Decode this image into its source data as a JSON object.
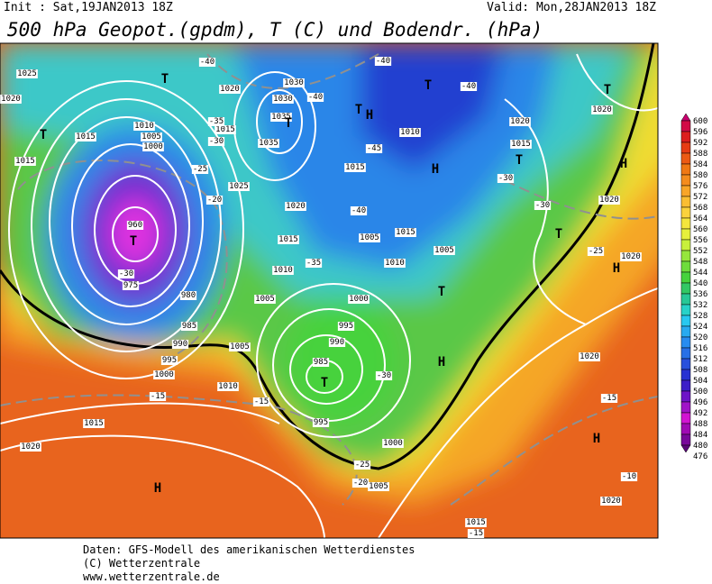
{
  "header": {
    "init": "Init : Sat,19JAN2013 18Z",
    "valid": "Valid: Mon,28JAN2013 18Z",
    "title": "500 hPa Geopot.(gpdm), T (C) und Bodendr. (hPa)"
  },
  "colorbar": {
    "levels": [
      "600",
      "596",
      "592",
      "588",
      "584",
      "580",
      "576",
      "572",
      "568",
      "564",
      "560",
      "556",
      "552",
      "548",
      "544",
      "540",
      "536",
      "532",
      "528",
      "524",
      "520",
      "516",
      "512",
      "508",
      "504",
      "500",
      "496",
      "492",
      "488",
      "484",
      "480",
      "476"
    ],
    "colors": [
      "#c8006e",
      "#d20a46",
      "#dc1e1e",
      "#e63c14",
      "#ec5a14",
      "#f07814",
      "#f48c1e",
      "#f8a528",
      "#fabe32",
      "#fad23c",
      "#f5e63c",
      "#e6f03c",
      "#c8f03c",
      "#96e63c",
      "#6edc3c",
      "#46d23c",
      "#32c864",
      "#28c896",
      "#28d2c8",
      "#28c8f0",
      "#28aaf0",
      "#288cf0",
      "#2870e6",
      "#2850dc",
      "#2832d2",
      "#3c1ec8",
      "#6e14c8",
      "#a014c8",
      "#d214d2",
      "#a00ab4",
      "#78089a",
      "#5a0878"
    ]
  },
  "map_labels": [
    "1025",
    "1020",
    "T",
    "1015",
    "1015",
    "T",
    "-40",
    "1020",
    "1030",
    "1030",
    "-40",
    "1035",
    "1015",
    "1035",
    "-35",
    "-30",
    "T",
    "1010",
    "1005",
    "1000",
    "-25",
    "1025",
    "-20",
    "1020",
    "T",
    "960",
    "975",
    "-30",
    "980",
    "985",
    "990",
    "1005",
    "995",
    "1000",
    "1010",
    "-15",
    "-15",
    "1015",
    "1020",
    "H",
    "1015",
    "1010",
    "1005",
    "-35",
    "-40",
    "1005",
    "1015",
    "1010",
    "1005",
    "1000",
    "995",
    "990",
    "985",
    "T",
    "-30",
    "995",
    "1000",
    "1005",
    "-25",
    "T",
    "T",
    "H",
    "-40",
    "-40",
    "1010",
    "-45",
    "1015",
    "H",
    "T",
    "1020",
    "1020",
    "1015",
    "T",
    "-30",
    "-30",
    "H",
    "1020",
    "T",
    "-25",
    "1020",
    "H",
    "T",
    "H",
    "1020",
    "-15",
    "H",
    "-10",
    "1020",
    "1015",
    "-15",
    "-20"
  ],
  "footer": [
    "Daten: GFS-Modell des amerikanischen Wetterdienstes",
    "(C) Wetterzentrale",
    "www.wetterzentrale.de"
  ]
}
